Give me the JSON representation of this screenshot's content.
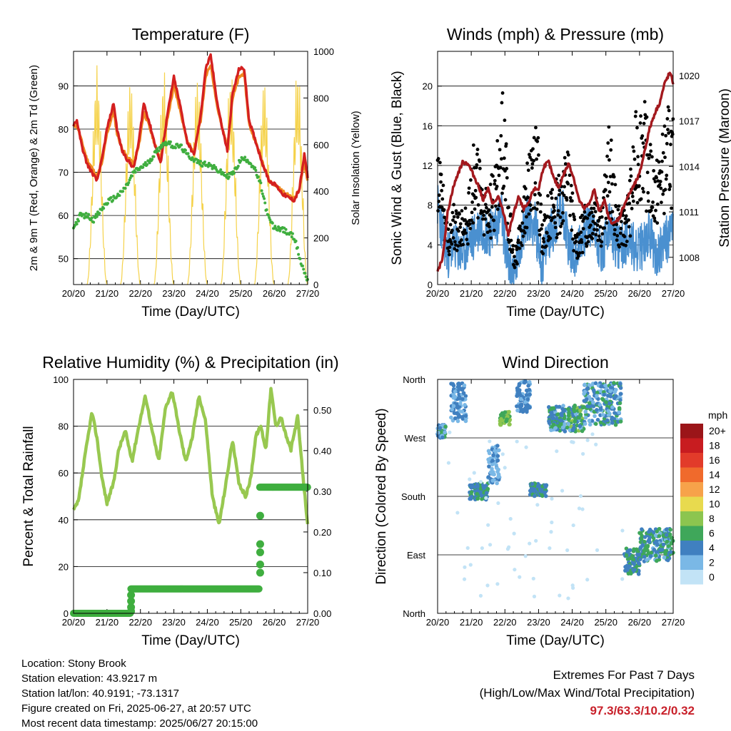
{
  "footer": {
    "location": "Location: Stony Brook",
    "elevation": "Station elevation: 43.9217 m",
    "latlon": "Station lat/lon: 40.9191; -73.1317",
    "created": "Figure created on Fri, 2025-06-27, at 20:57 UTC",
    "latest": "Most recent data timestamp: 2025/06/27 20:15:00",
    "extremes_title": "Extremes For Past 7 Days",
    "extremes_subtitle": "(High/Low/Max Wind/Total Precipitation)",
    "extremes_values": "97.3/63.3/10.2/0.32"
  },
  "colors": {
    "temp_2m": "#d42020",
    "temp_9m": "#f08a20",
    "dewpoint": "#3fae3f",
    "insolation": "#f5d24a",
    "wind": "#4a90d0",
    "gust": "#000000",
    "pressure": "#a3191e",
    "rh": "#98c850",
    "rain": "#3fae3f"
  },
  "chart_data": [
    {
      "id": "temperature",
      "type": "line",
      "title": "Temperature (F)",
      "xlabel": "Time (Day/UTC)",
      "ylabel": "2m & 9m T (Red, Orange) & 2m Td (Green)",
      "y2label": "Solar Insolation (Yellow)",
      "x_ticks": [
        "20/20",
        "21/20",
        "22/20",
        "23/20",
        "24/20",
        "25/20",
        "26/20",
        "27/20"
      ],
      "xlim": [
        0,
        7
      ],
      "ylim": [
        44,
        98
      ],
      "y_ticks": [
        50,
        60,
        70,
        80,
        90
      ],
      "y2lim": [
        0,
        1000
      ],
      "y2_ticks": [
        0,
        200,
        400,
        600,
        800,
        1000
      ],
      "grid": true,
      "series": [
        {
          "role": "temp_2m",
          "x": [
            0,
            0.1,
            0.25,
            0.4,
            0.55,
            0.7,
            0.85,
            1.0,
            1.2,
            1.3,
            1.45,
            1.6,
            1.8,
            1.95,
            2.1,
            2.25,
            2.45,
            2.6,
            2.8,
            3.0,
            3.2,
            3.4,
            3.6,
            3.8,
            3.95,
            4.1,
            4.3,
            4.45,
            4.6,
            4.75,
            4.95,
            5.1,
            5.25,
            5.45,
            5.65,
            5.85,
            6.05,
            6.25,
            6.45,
            6.6,
            6.75,
            6.9,
            7.0
          ],
          "y": [
            81,
            82,
            76,
            72,
            70,
            68,
            73,
            80,
            86,
            80,
            75,
            73,
            71,
            77,
            86,
            82,
            76,
            72,
            83,
            92,
            85,
            77,
            74,
            83,
            94,
            97,
            86,
            80,
            75,
            88,
            94,
            94,
            82,
            77,
            72,
            68,
            67,
            65,
            64,
            63.5,
            66,
            74,
            69
          ]
        },
        {
          "role": "temp_9m",
          "x": [
            0,
            0.1,
            0.25,
            0.4,
            0.55,
            0.7,
            0.85,
            1.0,
            1.2,
            1.3,
            1.45,
            1.6,
            1.8,
            1.95,
            2.1,
            2.25,
            2.45,
            2.6,
            2.8,
            3.0,
            3.2,
            3.4,
            3.6,
            3.8,
            3.95,
            4.1,
            4.3,
            4.45,
            4.6,
            4.75,
            4.95,
            5.1,
            5.25,
            5.45,
            5.65,
            5.85,
            6.05,
            6.25,
            6.45,
            6.6,
            6.75,
            6.9,
            7.0
          ],
          "y": [
            80.5,
            81,
            77,
            73,
            71,
            69,
            72,
            79,
            84,
            79,
            75.5,
            73.5,
            72,
            76,
            84,
            81,
            76,
            73,
            82,
            90,
            84,
            77,
            75,
            82,
            92,
            95,
            85,
            80,
            76,
            87,
            92,
            93,
            81,
            77,
            72.5,
            68,
            67,
            65.5,
            64.5,
            64,
            66,
            72,
            68
          ]
        },
        {
          "role": "dewpoint",
          "x": [
            0,
            0.2,
            0.4,
            0.6,
            0.8,
            1.0,
            1.2,
            1.4,
            1.6,
            1.8,
            2.0,
            2.2,
            2.4,
            2.6,
            2.8,
            3.0,
            3.2,
            3.4,
            3.6,
            3.8,
            4.0,
            4.2,
            4.4,
            4.6,
            4.8,
            5.0,
            5.2,
            5.4,
            5.6,
            5.8,
            6.0,
            6.2,
            6.4,
            6.6,
            6.8,
            7.0
          ],
          "y": [
            57,
            60,
            60,
            59,
            61,
            63,
            64,
            65,
            67,
            70,
            71,
            72,
            74,
            76,
            77,
            76,
            76,
            74,
            73,
            72,
            72,
            71,
            70,
            69,
            70,
            73,
            73,
            71,
            67,
            60,
            57,
            57,
            56,
            55,
            49,
            45
          ]
        },
        {
          "role": "insolation",
          "peaks_x": [
            0.7,
            1.7,
            2.7,
            3.7,
            4.7,
            5.7,
            6.7
          ],
          "peaks_y": [
            940,
            900,
            920,
            910,
            920,
            900,
            940
          ]
        }
      ]
    },
    {
      "id": "winds",
      "type": "line",
      "title": "Winds (mph) & Pressure (mb)",
      "xlabel": "Time (Day/UTC)",
      "ylabel": "Sonic Wind & Gust (Blue, Black)",
      "y2label": "Station Pressure (Maroon)",
      "x_ticks": [
        "20/20",
        "21/20",
        "22/20",
        "23/20",
        "24/20",
        "25/20",
        "26/20",
        "27/20"
      ],
      "xlim": [
        0,
        7
      ],
      "ylim": [
        0,
        23.5
      ],
      "y_ticks": [
        0,
        4,
        8,
        12,
        16,
        20
      ],
      "y2lim": [
        1006.2,
        1021.6
      ],
      "y2_ticks": [
        1008,
        1011,
        1014,
        1017,
        1020
      ],
      "grid": true,
      "series": [
        {
          "role": "wind",
          "x": [
            0,
            0.15,
            0.3,
            0.5,
            0.7,
            0.9,
            1.1,
            1.3,
            1.5,
            1.7,
            1.9,
            2.1,
            2.3,
            2.5,
            2.7,
            2.9,
            3.1,
            3.3,
            3.5,
            3.7,
            3.9,
            4.1,
            4.3,
            4.5,
            4.7,
            4.9,
            5.1,
            5.3,
            5.5,
            5.7,
            5.9,
            6.1,
            6.3,
            6.5,
            6.7,
            6.9,
            7.0
          ],
          "y": [
            8,
            5,
            3,
            4,
            3,
            4,
            5,
            6,
            5,
            6,
            7,
            2,
            1,
            5,
            7,
            6,
            2,
            5,
            6,
            8,
            4,
            3,
            5,
            6,
            5,
            3,
            6,
            4,
            4,
            5,
            3,
            4,
            5,
            3,
            4,
            5,
            6
          ]
        },
        {
          "role": "gust",
          "x": [
            0,
            0.15,
            0.3,
            0.5,
            0.7,
            0.9,
            1.1,
            1.3,
            1.5,
            1.7,
            1.9,
            2.0,
            2.1,
            2.3,
            2.5,
            2.7,
            2.9,
            3.0,
            3.1,
            3.3,
            3.5,
            3.7,
            3.9,
            4.1,
            4.3,
            4.5,
            4.7,
            4.9,
            5.1,
            5.3,
            5.5,
            5.7,
            5.9,
            6.1,
            6.3,
            6.5,
            6.7,
            6.9,
            7.0
          ],
          "y": [
            15,
            11,
            5,
            8,
            7,
            9,
            15,
            11,
            9,
            12,
            18,
            20,
            9,
            3,
            8,
            13,
            16,
            14,
            6,
            9,
            10,
            12,
            14,
            5,
            7,
            9,
            10,
            8,
            16,
            9,
            7,
            10,
            17,
            19,
            14,
            12,
            15,
            18,
            16
          ]
        },
        {
          "role": "pressure",
          "x": [
            0,
            0.15,
            0.3,
            0.45,
            0.6,
            0.75,
            0.9,
            1.05,
            1.2,
            1.35,
            1.5,
            1.65,
            1.8,
            1.95,
            2.1,
            2.25,
            2.4,
            2.55,
            2.7,
            2.85,
            3.0,
            3.15,
            3.3,
            3.45,
            3.6,
            3.75,
            3.9,
            4.05,
            4.2,
            4.35,
            4.5,
            4.65,
            4.8,
            4.95,
            5.1,
            5.25,
            5.4,
            5.55,
            5.7,
            5.85,
            6.0,
            6.15,
            6.3,
            6.45,
            6.6,
            6.75,
            6.9,
            7.0
          ],
          "y": [
            1007,
            1008,
            1011,
            1012.5,
            1013.5,
            1014.3,
            1014.2,
            1013.5,
            1012.8,
            1011.8,
            1012.5,
            1011.5,
            1012,
            1011,
            1009.5,
            1010.8,
            1012,
            1011.2,
            1011.5,
            1012.5,
            1012.5,
            1014,
            1014.3,
            1013.2,
            1012.6,
            1013.5,
            1014.2,
            1013.2,
            1011.8,
            1011.2,
            1011.5,
            1012.5,
            1011,
            1011.8,
            1010.5,
            1010.2,
            1010.6,
            1011.5,
            1012.2,
            1012.8,
            1013.5,
            1015,
            1016.5,
            1017.5,
            1018.2,
            1019.5,
            1020.2,
            1019.5
          ]
        }
      ]
    },
    {
      "id": "humidity",
      "type": "line",
      "title": "Relative Humidity (%) & Precipitation (in)",
      "xlabel": "Time (Day/UTC)",
      "ylabel": "Percent & Total Rainfall",
      "x_ticks": [
        "20/20",
        "21/20",
        "22/20",
        "23/20",
        "24/20",
        "25/20",
        "26/20",
        "27/20"
      ],
      "xlim": [
        0,
        7
      ],
      "ylim": [
        0,
        100
      ],
      "y_ticks": [
        0,
        20,
        40,
        60,
        80,
        100
      ],
      "y2lim": [
        0,
        0.575
      ],
      "y2_ticks": [
        "0.00",
        "0.10",
        "0.20",
        "0.30",
        "0.40",
        "0.50"
      ],
      "grid": true,
      "series": [
        {
          "role": "rh",
          "x": [
            0,
            0.15,
            0.35,
            0.55,
            0.7,
            0.85,
            1.0,
            1.2,
            1.35,
            1.55,
            1.75,
            1.95,
            2.15,
            2.35,
            2.55,
            2.75,
            2.95,
            3.15,
            3.35,
            3.55,
            3.75,
            3.95,
            4.15,
            4.35,
            4.55,
            4.75,
            4.95,
            5.15,
            5.3,
            5.45,
            5.6,
            5.75,
            5.9,
            6.05,
            6.2,
            6.35,
            6.5,
            6.7,
            6.85,
            7.0
          ],
          "y": [
            44,
            48,
            68,
            86,
            75,
            58,
            47,
            56,
            70,
            78,
            65,
            80,
            93,
            78,
            65,
            88,
            95,
            79,
            65,
            75,
            93,
            82,
            50,
            38,
            55,
            74,
            55,
            50,
            58,
            76,
            80,
            70,
            96,
            80,
            84,
            76,
            70,
            84,
            60,
            38
          ]
        },
        {
          "role": "rain",
          "x": [
            0,
            1.7,
            1.75,
            5.55,
            5.57,
            5.6,
            5.62,
            5.65,
            7.0
          ],
          "y": [
            0,
            0,
            0.06,
            0.06,
            0.1,
            0.15,
            0.24,
            0.31,
            0.31
          ]
        }
      ]
    },
    {
      "id": "direction",
      "type": "scatter",
      "title": "Wind Direction",
      "xlabel": "Time (Day/UTC)",
      "ylabel": "Direction (Colored By Speed)",
      "x_ticks": [
        "20/20",
        "21/20",
        "22/20",
        "23/20",
        "24/20",
        "25/20",
        "26/20",
        "27/20"
      ],
      "xlim": [
        0,
        7
      ],
      "y_ticks": [
        "North",
        "West",
        "South",
        "East",
        "North"
      ],
      "ylim": [
        0,
        360
      ],
      "legend": {
        "title": "mph",
        "labels": [
          "20+",
          "18",
          "16",
          "14",
          "12",
          "10",
          "8",
          "6",
          "4",
          "2",
          "0"
        ],
        "colors": [
          "#9b1519",
          "#c81c20",
          "#e23b2a",
          "#f06a2c",
          "#f7a24a",
          "#e8da4e",
          "#8cc54f",
          "#3fa75a",
          "#4080c0",
          "#7ab8e6",
          "#c2e3f6"
        ],
        "placement": "right"
      },
      "clusters": [
        {
          "x": [
            0,
            0.25
          ],
          "dir": [
            270,
            290
          ],
          "speed": [
            2,
            6
          ]
        },
        {
          "x": [
            0.4,
            0.85
          ],
          "dir": [
            295,
            355
          ],
          "speed": [
            2,
            5
          ]
        },
        {
          "x": [
            0.95,
            1.5
          ],
          "dir": [
            175,
            200
          ],
          "speed": [
            3,
            6
          ]
        },
        {
          "x": [
            1.5,
            1.85
          ],
          "dir": [
            200,
            260
          ],
          "speed": [
            1,
            4
          ]
        },
        {
          "x": [
            1.85,
            2.15
          ],
          "dir": [
            290,
            310
          ],
          "speed": [
            5,
            9
          ]
        },
        {
          "x": [
            2.35,
            2.75
          ],
          "dir": [
            310,
            358
          ],
          "speed": [
            2,
            5
          ]
        },
        {
          "x": [
            2.75,
            3.25
          ],
          "dir": [
            180,
            200
          ],
          "speed": [
            3,
            6
          ]
        },
        {
          "x": [
            3.3,
            3.8
          ],
          "dir": [
            280,
            320
          ],
          "speed": [
            2,
            7
          ]
        },
        {
          "x": [
            3.85,
            4.35
          ],
          "dir": [
            280,
            320
          ],
          "speed": [
            2,
            8
          ]
        },
        {
          "x": [
            4.35,
            5.45
          ],
          "dir": [
            290,
            355
          ],
          "speed": [
            1,
            6
          ]
        },
        {
          "x": [
            5.55,
            6.0
          ],
          "dir": [
            60,
            100
          ],
          "speed": [
            3,
            7
          ]
        },
        {
          "x": [
            6.0,
            7.0
          ],
          "dir": [
            80,
            130
          ],
          "speed": [
            2,
            7
          ]
        }
      ]
    }
  ]
}
